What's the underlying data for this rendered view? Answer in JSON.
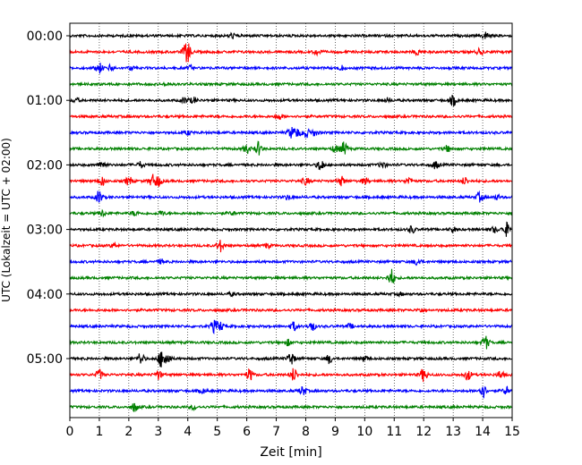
{
  "chart_data": {
    "type": "line",
    "title": "",
    "xlabel": "Zeit  [min]",
    "ylabel": "UTC (Lokalzeit = UTC + 02:00)",
    "xlim": [
      0,
      15
    ],
    "x_ticks": [
      "0",
      "1",
      "2",
      "3",
      "4",
      "5",
      "6",
      "7",
      "8",
      "9",
      "10",
      "11",
      "12",
      "13",
      "14",
      "15"
    ],
    "y_tick_labels": [
      "00:00",
      "01:00",
      "02:00",
      "03:00",
      "04:00",
      "05:00"
    ],
    "grid": "vertical-dotted",
    "trace_colors": [
      "#000000",
      "#ff0000",
      "#0000ff",
      "#008000"
    ],
    "traces": [
      {
        "start": "00:00",
        "bursts": [
          [
            5.5,
            0.35
          ],
          [
            14.1,
            0.5
          ]
        ]
      },
      {
        "start": "00:15",
        "bursts": [
          [
            3.9,
            0.5
          ],
          [
            4.0,
            1.2
          ],
          [
            8.4,
            0.4
          ],
          [
            11.8,
            0.4
          ],
          [
            13.9,
            0.4
          ]
        ]
      },
      {
        "start": "00:30",
        "bursts": [
          [
            1.0,
            0.7
          ],
          [
            1.4,
            0.4
          ],
          [
            2.1,
            0.3
          ],
          [
            4.1,
            0.3
          ],
          [
            9.2,
            0.3
          ]
        ]
      },
      {
        "start": "00:45",
        "bursts": [
          [
            3.3,
            0.15
          ]
        ]
      },
      {
        "start": "01:00",
        "bursts": [
          [
            0.2,
            0.3
          ],
          [
            3.9,
            0.4
          ],
          [
            4.2,
            0.4
          ],
          [
            10.8,
            0.3
          ],
          [
            13.0,
            0.7
          ]
        ]
      },
      {
        "start": "01:15",
        "bursts": [
          [
            7.1,
            0.4
          ]
        ]
      },
      {
        "start": "01:30",
        "bursts": [
          [
            4.0,
            0.3
          ],
          [
            7.5,
            0.7
          ],
          [
            7.7,
            0.6
          ],
          [
            8.0,
            0.7
          ],
          [
            8.3,
            0.4
          ]
        ]
      },
      {
        "start": "01:45",
        "bursts": [
          [
            6.0,
            0.6
          ],
          [
            6.4,
            0.9
          ],
          [
            9.3,
            0.9
          ],
          [
            9.0,
            0.5
          ],
          [
            12.8,
            0.4
          ]
        ]
      },
      {
        "start": "02:00",
        "bursts": [
          [
            1.1,
            0.6
          ],
          [
            2.4,
            0.4
          ],
          [
            8.5,
            0.8
          ],
          [
            10.6,
            0.4
          ],
          [
            12.4,
            0.5
          ]
        ]
      },
      {
        "start": "02:15",
        "bursts": [
          [
            1.1,
            0.6
          ],
          [
            2.0,
            0.6
          ],
          [
            2.8,
            0.8
          ],
          [
            3.0,
            0.7
          ],
          [
            8.0,
            0.5
          ],
          [
            9.2,
            0.6
          ],
          [
            10.0,
            0.4
          ],
          [
            11.5,
            0.5
          ],
          [
            13.4,
            0.5
          ]
        ]
      },
      {
        "start": "02:30",
        "bursts": [
          [
            1.0,
            0.9
          ],
          [
            7.4,
            0.3
          ],
          [
            13.9,
            0.6
          ],
          [
            14.5,
            0.3
          ]
        ]
      },
      {
        "start": "02:45",
        "bursts": [
          [
            1.1,
            0.4
          ],
          [
            2.2,
            0.3
          ],
          [
            3.1,
            0.3
          ],
          [
            5.5,
            0.2
          ]
        ]
      },
      {
        "start": "03:00",
        "bursts": [
          [
            11.6,
            0.5
          ],
          [
            13.0,
            0.3
          ],
          [
            14.4,
            0.4
          ],
          [
            14.8,
            0.9
          ]
        ]
      },
      {
        "start": "03:15",
        "bursts": [
          [
            1.5,
            0.3
          ],
          [
            5.1,
            0.8
          ],
          [
            6.7,
            0.3
          ]
        ]
      },
      {
        "start": "03:30",
        "bursts": [
          [
            3.1,
            0.3
          ],
          [
            11.8,
            0.5
          ]
        ]
      },
      {
        "start": "03:45",
        "bursts": [
          [
            10.9,
            1.2
          ]
        ]
      },
      {
        "start": "04:00",
        "bursts": [
          [
            5.5,
            0.2
          ],
          [
            11.2,
            0.2
          ]
        ]
      },
      {
        "start": "04:15",
        "bursts": [
          [
            11.9,
            0.3
          ]
        ]
      },
      {
        "start": "04:30",
        "bursts": [
          [
            4.9,
            0.8
          ],
          [
            5.1,
            0.6
          ],
          [
            7.6,
            0.6
          ],
          [
            8.2,
            0.7
          ],
          [
            9.5,
            0.3
          ]
        ]
      },
      {
        "start": "04:45",
        "bursts": [
          [
            7.4,
            0.4
          ],
          [
            14.1,
            0.9
          ]
        ]
      },
      {
        "start": "05:00",
        "bursts": [
          [
            2.4,
            0.8
          ],
          [
            3.1,
            1.1
          ],
          [
            3.3,
            0.9
          ],
          [
            7.5,
            0.9
          ],
          [
            8.8,
            0.6
          ],
          [
            10.0,
            0.4
          ]
        ]
      },
      {
        "start": "05:15",
        "bursts": [
          [
            1.0,
            0.7
          ],
          [
            3.0,
            0.6
          ],
          [
            6.1,
            0.8
          ],
          [
            7.6,
            0.9
          ],
          [
            12.0,
            0.9
          ],
          [
            13.5,
            0.7
          ],
          [
            14.6,
            0.5
          ]
        ]
      },
      {
        "start": "05:30",
        "bursts": [
          [
            4.5,
            0.3
          ],
          [
            7.9,
            0.6
          ],
          [
            14.0,
            1.0
          ],
          [
            14.8,
            0.5
          ]
        ]
      },
      {
        "start": "05:45",
        "bursts": [
          [
            2.2,
            0.6
          ],
          [
            4.2,
            0.3
          ]
        ]
      }
    ]
  }
}
